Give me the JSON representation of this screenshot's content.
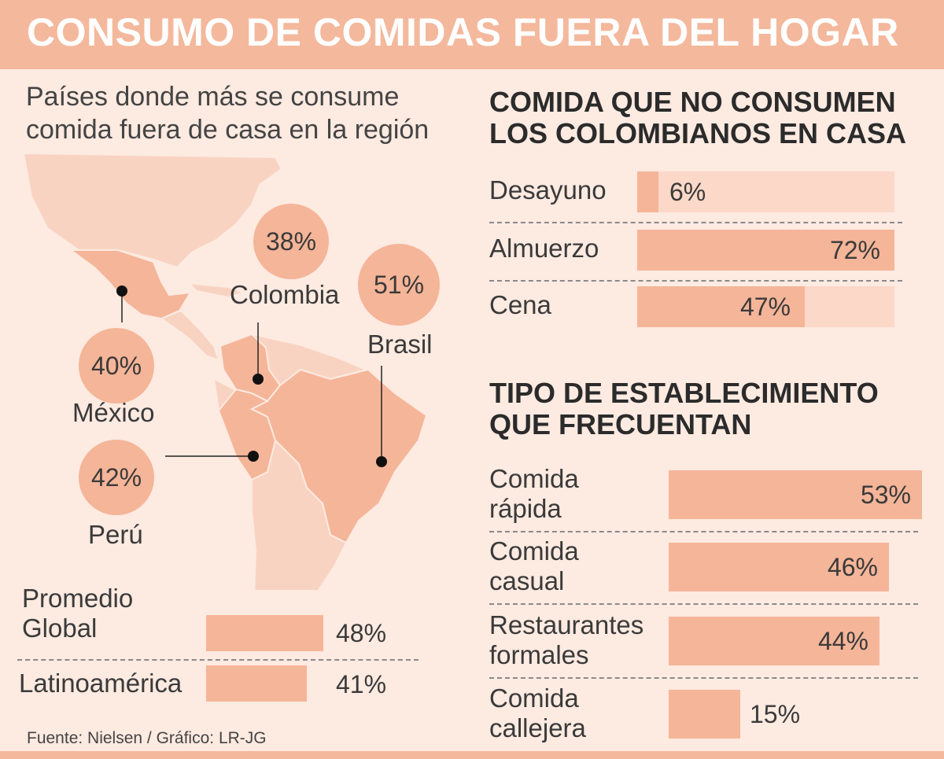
{
  "title": "CONSUMO DE COMIDAS FUERA DEL HOGAR",
  "subtitle_line1": "Países donde más se consume",
  "subtitle_line2": "comida fuera de casa en la región",
  "colors": {
    "header": "#f4b89c",
    "background": "#fdeae1",
    "bar": "#f5b598",
    "track": "#fcd8c8",
    "map_light": "#f9d3c2"
  },
  "source": "Fuente: Nielsen / Gráfico: LR-JG",
  "chart_data": [
    {
      "type": "map-bubbles",
      "title": "Países donde más se consume comida fuera de casa en la región",
      "points": [
        {
          "country": "Colombia",
          "label": "38%",
          "value": 38
        },
        {
          "country": "Brasil",
          "label": "51%",
          "value": 51
        },
        {
          "country": "México",
          "label": "40%",
          "value": 40
        },
        {
          "country": "Perú",
          "label": "42%",
          "value": 42
        }
      ]
    },
    {
      "type": "bar",
      "orientation": "horizontal",
      "categories": [
        "Promedio Global",
        "Latinoamérica"
      ],
      "category_lines": [
        [
          "Promedio",
          "Global"
        ],
        [
          "Latinoamérica"
        ]
      ],
      "values": [
        48,
        41
      ],
      "labels": [
        "48%",
        "41%"
      ]
    },
    {
      "type": "bar",
      "orientation": "horizontal",
      "title_line1": "COMIDA QUE NO CONSUMEN",
      "title_line2": "LOS COLOMBIANOS EN CASA",
      "categories": [
        "Desayuno",
        "Almuerzo",
        "Cena"
      ],
      "values": [
        6,
        72,
        47
      ],
      "labels": [
        "6%",
        "72%",
        "47%"
      ],
      "xlim": [
        0,
        72
      ]
    },
    {
      "type": "bar",
      "orientation": "horizontal",
      "title_line1": "TIPO DE ESTABLECIMIENTO",
      "title_line2": "QUE FRECUENTAN",
      "categories": [
        "Comida rápida",
        "Comida casual",
        "Restaurantes formales",
        "Comida callejera"
      ],
      "category_lines": [
        [
          "Comida",
          "rápida"
        ],
        [
          "Comida",
          "casual"
        ],
        [
          "Restaurantes",
          "formales"
        ],
        [
          "Comida",
          "callejera"
        ]
      ],
      "values": [
        53,
        46,
        44,
        15
      ],
      "labels": [
        "53%",
        "46%",
        "44%",
        "15%"
      ]
    }
  ]
}
